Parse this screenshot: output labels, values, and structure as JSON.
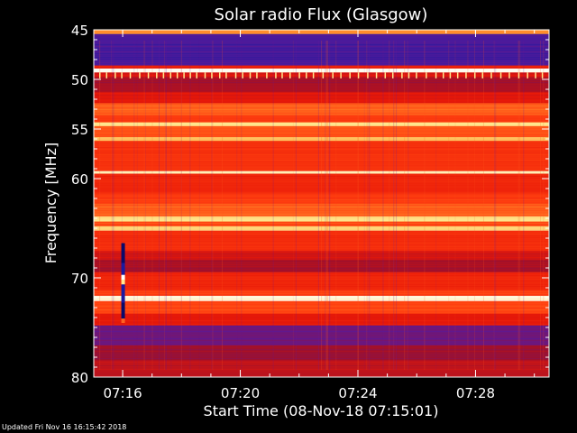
{
  "chart_data": {
    "type": "heatmap",
    "title": "Solar radio Flux (Glasgow)",
    "xlabel": "Start Time (08-Nov-18 07:15:01)",
    "ylabel": "Frequency [MHz]",
    "x_ticks": [
      "07:16",
      "07:20",
      "07:24",
      "07:28"
    ],
    "y_ticks": [
      45,
      50,
      55,
      60,
      70,
      80
    ],
    "ylim": [
      45,
      80
    ],
    "xlim": [
      "07:15:01",
      "07:30:30"
    ],
    "colormap": [
      "#1a1a9c",
      "#5a1a9a",
      "#a0102a",
      "#e81808",
      "#ff4010",
      "#ff9a30",
      "#ffe890",
      "#ffffff"
    ],
    "background_bands": [
      {
        "from": 45.0,
        "to": 45.4,
        "level": 0.7
      },
      {
        "from": 45.4,
        "to": 48.6,
        "level": 0.1
      },
      {
        "from": 48.6,
        "to": 48.9,
        "level": 0.45
      },
      {
        "from": 48.9,
        "to": 49.3,
        "level": 0.98
      },
      {
        "from": 49.3,
        "to": 49.8,
        "level": 0.4
      },
      {
        "from": 49.8,
        "to": 51.3,
        "level": 0.3
      },
      {
        "from": 51.3,
        "to": 52.4,
        "level": 0.42
      },
      {
        "from": 52.4,
        "to": 53.6,
        "level": 0.62
      },
      {
        "from": 53.6,
        "to": 54.3,
        "level": 0.55
      },
      {
        "from": 54.3,
        "to": 54.7,
        "level": 0.85
      },
      {
        "from": 54.7,
        "to": 55.8,
        "level": 0.6
      },
      {
        "from": 55.8,
        "to": 56.2,
        "level": 0.78
      },
      {
        "from": 56.2,
        "to": 59.2,
        "level": 0.52
      },
      {
        "from": 59.2,
        "to": 59.5,
        "level": 0.92
      },
      {
        "from": 59.5,
        "to": 61.5,
        "level": 0.48
      },
      {
        "from": 61.5,
        "to": 62.5,
        "level": 0.55
      },
      {
        "from": 62.5,
        "to": 63.8,
        "level": 0.62
      },
      {
        "from": 63.8,
        "to": 64.3,
        "level": 0.85
      },
      {
        "from": 64.3,
        "to": 64.8,
        "level": 0.58
      },
      {
        "from": 64.8,
        "to": 65.2,
        "level": 0.82
      },
      {
        "from": 65.2,
        "to": 67.3,
        "level": 0.5
      },
      {
        "from": 67.3,
        "to": 68.2,
        "level": 0.38
      },
      {
        "from": 68.2,
        "to": 69.4,
        "level": 0.3
      },
      {
        "from": 69.4,
        "to": 71.2,
        "level": 0.48
      },
      {
        "from": 71.2,
        "to": 71.8,
        "level": 0.55
      },
      {
        "from": 71.8,
        "to": 72.3,
        "level": 0.95
      },
      {
        "from": 72.3,
        "to": 73.6,
        "level": 0.58
      },
      {
        "from": 73.6,
        "to": 74.8,
        "level": 0.42
      },
      {
        "from": 74.8,
        "to": 76.8,
        "level": 0.18
      },
      {
        "from": 76.8,
        "to": 78.3,
        "level": 0.28
      },
      {
        "from": 78.3,
        "to": 80.0,
        "level": 0.35
      }
    ],
    "burst": {
      "time": "07:16",
      "freq_from": 66.5,
      "freq_to": 74.5
    }
  },
  "footer": {
    "updated": "Updated Fri Nov 16 16:15:42 2018"
  }
}
